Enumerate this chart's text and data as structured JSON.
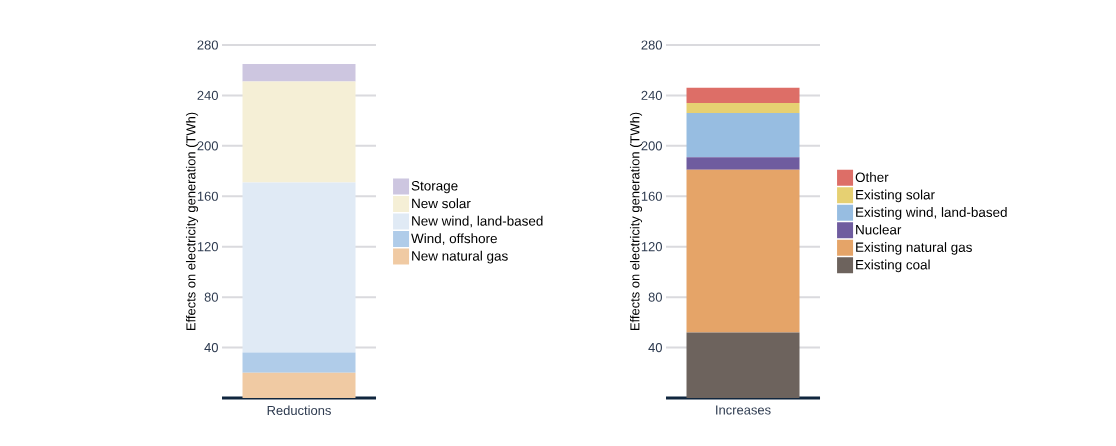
{
  "chart_data": [
    {
      "type": "bar",
      "stacked": true,
      "categories": [
        "Reductions"
      ],
      "ylabel": "Effects on electricity generation (TWh)",
      "ylim": [
        0,
        280
      ],
      "yticks": [
        40,
        80,
        120,
        160,
        200,
        240,
        280
      ],
      "grid": "y",
      "legend": "right",
      "series": [
        {
          "name": "New natural gas",
          "color": "#f0caa3",
          "values": [
            20
          ]
        },
        {
          "name": "Wind, offshore",
          "color": "#b0cce9",
          "values": [
            16
          ]
        },
        {
          "name": "New wind, land-based",
          "color": "#e0eaf5",
          "values": [
            135
          ]
        },
        {
          "name": "New solar",
          "color": "#f5efd6",
          "values": [
            80
          ]
        },
        {
          "name": "Storage",
          "color": "#cdc6e0",
          "values": [
            14
          ]
        }
      ]
    },
    {
      "type": "bar",
      "stacked": true,
      "categories": [
        "Increases"
      ],
      "ylabel": "Effects on electricity generation (TWh)",
      "ylim": [
        0,
        280
      ],
      "yticks": [
        40,
        80,
        120,
        160,
        200,
        240,
        280
      ],
      "grid": "y",
      "legend": "right",
      "series": [
        {
          "name": "Existing coal",
          "color": "#6d635d",
          "values": [
            52
          ]
        },
        {
          "name": "Existing natural gas",
          "color": "#e5a468",
          "values": [
            129
          ]
        },
        {
          "name": "Nuclear",
          "color": "#6f5c9f",
          "values": [
            10
          ]
        },
        {
          "name": "Existing wind, land-based",
          "color": "#97bde1",
          "values": [
            35
          ]
        },
        {
          "name": "Existing solar",
          "color": "#e6d072",
          "values": [
            8
          ]
        },
        {
          "name": "Other",
          "color": "#dd6e67",
          "values": [
            12
          ]
        }
      ]
    }
  ]
}
